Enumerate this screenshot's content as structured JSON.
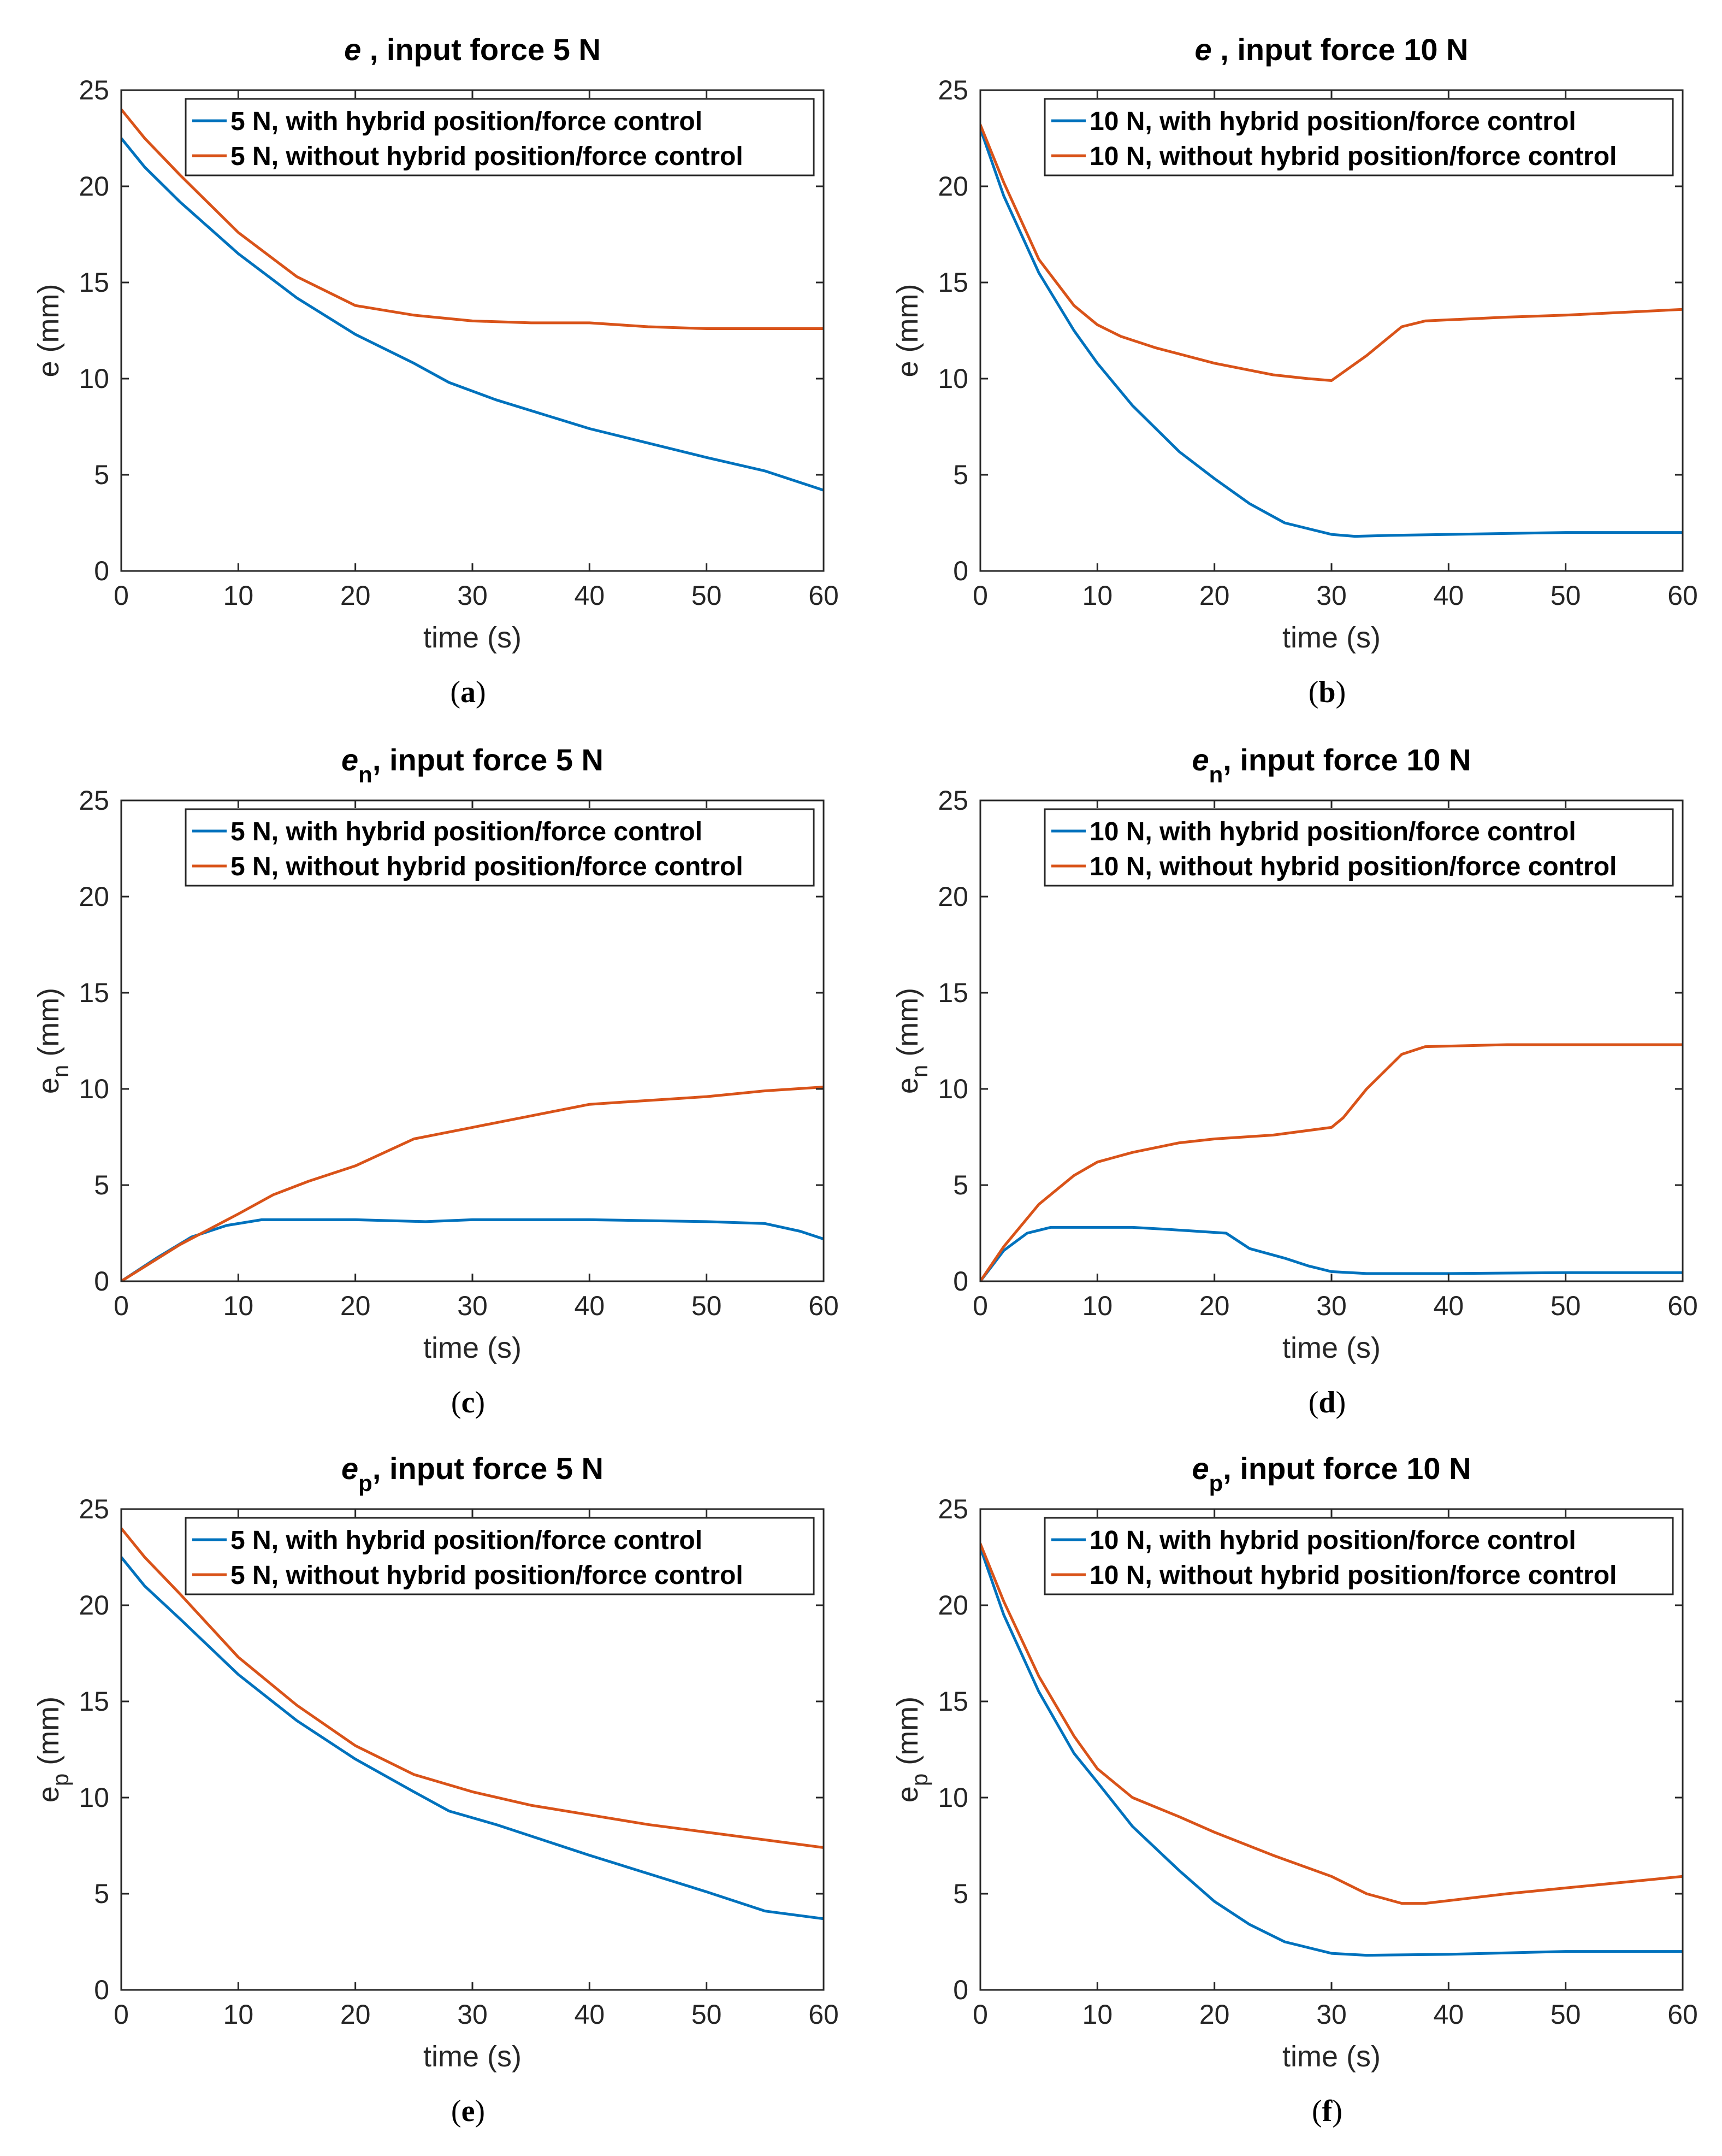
{
  "colors": {
    "with": "#0072BD",
    "without": "#D95319",
    "axis": "#262626"
  },
  "chart_data": [
    {
      "id": "a",
      "type": "line",
      "caption_letter": "a",
      "title_var": "e",
      "title_sub": "",
      "title_rest": ", input force 5 N",
      "ylabel_var": "e",
      "ylabel_sub": "",
      "ylabel_unit": "(mm)",
      "xlabel": "time (s)",
      "xlim": [
        0,
        60
      ],
      "ylim": [
        0,
        25
      ],
      "xticks": [
        0,
        10,
        20,
        30,
        40,
        50,
        60
      ],
      "yticks": [
        0,
        5,
        10,
        15,
        20,
        25
      ],
      "series": [
        {
          "name": "5 N, with hybrid position/force control",
          "key": "with",
          "x": [
            0,
            2,
            5,
            10,
            15,
            20,
            25,
            28,
            32,
            40,
            50,
            55,
            60
          ],
          "y": [
            22.5,
            21,
            19.2,
            16.5,
            14.2,
            12.3,
            10.8,
            9.8,
            8.9,
            7.4,
            5.9,
            5.2,
            4.2
          ]
        },
        {
          "name": "5 N, without hybrid position/force control",
          "key": "without",
          "x": [
            0,
            2,
            5,
            10,
            15,
            20,
            25,
            30,
            35,
            40,
            45,
            50,
            55,
            60
          ],
          "y": [
            24,
            22.5,
            20.6,
            17.6,
            15.3,
            13.8,
            13.3,
            13,
            12.9,
            12.9,
            12.7,
            12.6,
            12.6,
            12.6
          ]
        }
      ]
    },
    {
      "id": "b",
      "type": "line",
      "caption_letter": "b",
      "title_var": "e",
      "title_sub": "",
      "title_rest": ", input force 10 N",
      "ylabel_var": "e",
      "ylabel_sub": "",
      "ylabel_unit": "(mm)",
      "xlabel": "time (s)",
      "xlim": [
        0,
        60
      ],
      "ylim": [
        0,
        25
      ],
      "xticks": [
        0,
        10,
        20,
        30,
        40,
        50,
        60
      ],
      "yticks": [
        0,
        5,
        10,
        15,
        20,
        25
      ],
      "series": [
        {
          "name": "10 N, with hybrid position/force control",
          "key": "with",
          "x": [
            0,
            2,
            5,
            8,
            10,
            13,
            17,
            20,
            23,
            26,
            30,
            32,
            35,
            40,
            50,
            60
          ],
          "y": [
            23,
            19.5,
            15.5,
            12.5,
            10.8,
            8.6,
            6.2,
            4.8,
            3.5,
            2.5,
            1.9,
            1.8,
            1.85,
            1.9,
            2,
            2
          ]
        },
        {
          "name": "10 N, without hybrid position/force control",
          "key": "without",
          "x": [
            0,
            2,
            5,
            8,
            10,
            12,
            15,
            20,
            25,
            28,
            30,
            33,
            36,
            38,
            45,
            50,
            60
          ],
          "y": [
            23.2,
            20.2,
            16.2,
            13.8,
            12.8,
            12.2,
            11.6,
            10.8,
            10.2,
            10,
            9.9,
            11.2,
            12.7,
            13,
            13.2,
            13.3,
            13.6
          ]
        }
      ]
    },
    {
      "id": "c",
      "type": "line",
      "caption_letter": "c",
      "title_var": "e",
      "title_sub": "n",
      "title_rest": ", input force 5 N",
      "ylabel_var": "e",
      "ylabel_sub": "n",
      "ylabel_unit": "(mm)",
      "xlabel": "time (s)",
      "xlim": [
        0,
        60
      ],
      "ylim": [
        0,
        25
      ],
      "xticks": [
        0,
        10,
        20,
        30,
        40,
        50,
        60
      ],
      "yticks": [
        0,
        5,
        10,
        15,
        20,
        25
      ],
      "series": [
        {
          "name": "5 N, with hybrid position/force control",
          "key": "with",
          "x": [
            0,
            3,
            6,
            9,
            12,
            15,
            20,
            26,
            30,
            35,
            40,
            45,
            50,
            55,
            58,
            60
          ],
          "y": [
            0,
            1.2,
            2.3,
            2.9,
            3.2,
            3.2,
            3.2,
            3.1,
            3.2,
            3.2,
            3.2,
            3.15,
            3.1,
            3.0,
            2.6,
            2.2
          ]
        },
        {
          "name": "5 N, without hybrid position/force control",
          "key": "without",
          "x": [
            0,
            5,
            10,
            13,
            16,
            20,
            25,
            30,
            35,
            40,
            45,
            50,
            55,
            60
          ],
          "y": [
            0,
            1.9,
            3.5,
            4.5,
            5.2,
            6.0,
            7.4,
            8.0,
            8.6,
            9.2,
            9.4,
            9.6,
            9.9,
            10.1
          ]
        }
      ]
    },
    {
      "id": "d",
      "type": "line",
      "caption_letter": "d",
      "title_var": "e",
      "title_sub": "n",
      "title_rest": ", input force 10 N",
      "ylabel_var": "e",
      "ylabel_sub": "n",
      "ylabel_unit": "(mm)",
      "xlabel": "time (s)",
      "xlim": [
        0,
        60
      ],
      "ylim": [
        0,
        25
      ],
      "xticks": [
        0,
        10,
        20,
        30,
        40,
        50,
        60
      ],
      "yticks": [
        0,
        5,
        10,
        15,
        20,
        25
      ],
      "series": [
        {
          "name": "10 N, with hybrid position/force control",
          "key": "with",
          "x": [
            0,
            2,
            4,
            6,
            10,
            13,
            16,
            21,
            23,
            26,
            28,
            30,
            33,
            40,
            50,
            60
          ],
          "y": [
            0,
            1.6,
            2.5,
            2.8,
            2.8,
            2.8,
            2.7,
            2.5,
            1.7,
            1.2,
            0.8,
            0.5,
            0.4,
            0.4,
            0.45,
            0.45
          ]
        },
        {
          "name": "10 N, without hybrid position/force control",
          "key": "without",
          "x": [
            0,
            2,
            5,
            8,
            10,
            13,
            17,
            20,
            25,
            30,
            31,
            33,
            36,
            38,
            45,
            60
          ],
          "y": [
            0,
            1.8,
            4.0,
            5.5,
            6.2,
            6.7,
            7.2,
            7.4,
            7.6,
            8.0,
            8.5,
            10.0,
            11.8,
            12.2,
            12.3,
            12.3
          ]
        }
      ]
    },
    {
      "id": "e",
      "type": "line",
      "caption_letter": "e",
      "title_var": "e",
      "title_sub": "p",
      "title_rest": ", input force 5 N",
      "ylabel_var": "e",
      "ylabel_sub": "p",
      "ylabel_unit": "(mm)",
      "xlabel": "time (s)",
      "xlim": [
        0,
        60
      ],
      "ylim": [
        0,
        25
      ],
      "xticks": [
        0,
        10,
        20,
        30,
        40,
        50,
        60
      ],
      "yticks": [
        0,
        5,
        10,
        15,
        20,
        25
      ],
      "series": [
        {
          "name": "5 N, with hybrid position/force control",
          "key": "with",
          "x": [
            0,
            2,
            5,
            10,
            15,
            20,
            25,
            28,
            32,
            40,
            50,
            55,
            60
          ],
          "y": [
            22.5,
            21,
            19.3,
            16.4,
            14,
            12,
            10.3,
            9.3,
            8.6,
            7,
            5.1,
            4.1,
            3.7
          ]
        },
        {
          "name": "5 N, without hybrid position/force control",
          "key": "without",
          "x": [
            0,
            2,
            5,
            10,
            15,
            20,
            25,
            30,
            35,
            40,
            45,
            50,
            55,
            60
          ],
          "y": [
            24,
            22.5,
            20.6,
            17.3,
            14.8,
            12.7,
            11.2,
            10.3,
            9.6,
            9.1,
            8.6,
            8.2,
            7.8,
            7.4
          ]
        }
      ]
    },
    {
      "id": "f",
      "type": "line",
      "caption_letter": "f",
      "title_var": "e",
      "title_sub": "p",
      "title_rest": ", input force 10 N",
      "ylabel_var": "e",
      "ylabel_sub": "p",
      "ylabel_unit": "(mm)",
      "xlabel": "time (s)",
      "xlim": [
        0,
        60
      ],
      "ylim": [
        0,
        25
      ],
      "xticks": [
        0,
        10,
        20,
        30,
        40,
        50,
        60
      ],
      "yticks": [
        0,
        5,
        10,
        15,
        20,
        25
      ],
      "series": [
        {
          "name": "10 N, with hybrid position/force control",
          "key": "with",
          "x": [
            0,
            2,
            5,
            8,
            10,
            13,
            17,
            20,
            23,
            26,
            30,
            33,
            40,
            50,
            60
          ],
          "y": [
            23,
            19.5,
            15.5,
            12.3,
            10.8,
            8.5,
            6.2,
            4.6,
            3.4,
            2.5,
            1.9,
            1.8,
            1.85,
            2.0,
            2.0
          ]
        },
        {
          "name": "10 N, without hybrid position/force control",
          "key": "without",
          "x": [
            0,
            2,
            5,
            8,
            10,
            13,
            17,
            20,
            25,
            30,
            33,
            36,
            38,
            45,
            50,
            60
          ],
          "y": [
            23.2,
            20.2,
            16.3,
            13.2,
            11.5,
            10,
            9,
            8.2,
            7,
            5.9,
            5,
            4.5,
            4.5,
            5,
            5.3,
            5.9
          ]
        }
      ]
    }
  ]
}
